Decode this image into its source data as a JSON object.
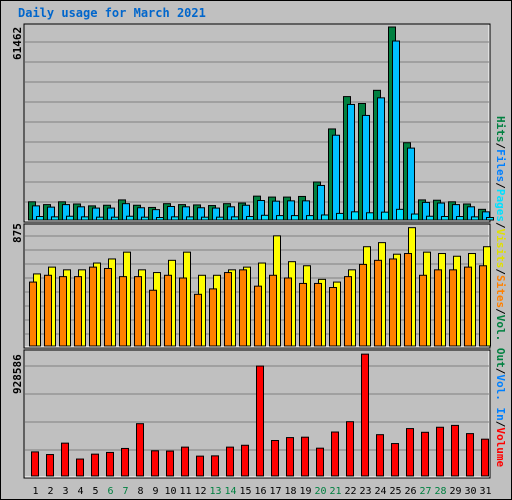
{
  "title": "Daily usage for March 2021",
  "colors": {
    "background": "#c0c0c0",
    "panel": "#c0c0c0",
    "gridline": "#808080",
    "title": "#0066cc",
    "hits": "#008040",
    "files": "#00c0ff",
    "pages": "#00e0ff",
    "visits": "#ffff00",
    "sites": "#ff8000",
    "kbin": "#ff0000",
    "kbout": "#cc0000",
    "weekday_label": "#000000",
    "weekend_label": "#008040"
  },
  "right_legend_top": [
    {
      "text": "Hits",
      "color": "#008040"
    },
    {
      "text": "/",
      "color": "#000000"
    },
    {
      "text": "Files",
      "color": "#0080ff"
    },
    {
      "text": "/",
      "color": "#000000"
    },
    {
      "text": "Pages",
      "color": "#00e0ff"
    },
    {
      "text": "/",
      "color": "#000000"
    },
    {
      "text": "Visits",
      "color": "#e0e000"
    },
    {
      "text": "/",
      "color": "#000000"
    },
    {
      "text": "Sites",
      "color": "#ff8000"
    },
    {
      "text": "/",
      "color": "#000000"
    },
    {
      "text": "Vol. Out",
      "color": "#008040"
    },
    {
      "text": "/",
      "color": "#000000"
    },
    {
      "text": "Vol. In",
      "color": "#0080ff"
    },
    {
      "text": "/",
      "color": "#000000"
    },
    {
      "text": "Volume",
      "color": "#ff0000"
    }
  ],
  "chart_data": [
    {
      "type": "bar",
      "panel": "hits-files-pages",
      "y_max_label": "61462",
      "ylim": [
        0,
        61462
      ],
      "x": [
        1,
        2,
        3,
        4,
        5,
        6,
        7,
        8,
        9,
        10,
        11,
        12,
        13,
        14,
        15,
        16,
        17,
        18,
        19,
        20,
        21,
        22,
        23,
        24,
        25,
        26,
        27,
        28,
        29,
        30,
        31
      ],
      "weekend_days": [
        6,
        7,
        13,
        14,
        20,
        21,
        27,
        28
      ],
      "series": [
        {
          "name": "Hits",
          "values": [
            5800,
            4900,
            5800,
            5100,
            4500,
            4700,
            6400,
            4700,
            4000,
            5200,
            4900,
            4800,
            4600,
            5200,
            5400,
            7600,
            7300,
            7300,
            7500,
            12100,
            29000,
            39300,
            37100,
            41300,
            61462,
            24600,
            6400,
            6300,
            5800,
            5100,
            3400
          ]
        },
        {
          "name": "Files",
          "values": [
            4500,
            4100,
            4900,
            4200,
            3800,
            3800,
            5200,
            3900,
            3300,
            4300,
            4200,
            3900,
            3800,
            4200,
            4700,
            6200,
            6000,
            6100,
            6100,
            11000,
            27000,
            36800,
            33300,
            38900,
            57000,
            22900,
            5600,
            5400,
            4900,
            4200,
            2600
          ]
        },
        {
          "name": "Pages",
          "values": [
            1100,
            1000,
            1200,
            1000,
            900,
            900,
            1200,
            900,
            800,
            1000,
            1000,
            900,
            900,
            1000,
            1100,
            1500,
            1400,
            1400,
            1400,
            1600,
            2100,
            2600,
            2300,
            2500,
            3400,
            1900,
            1200,
            1100,
            1100,
            1000,
            800
          ]
        }
      ]
    },
    {
      "type": "bar",
      "panel": "visits-sites",
      "y_max_label": "875",
      "ylim": [
        0,
        875
      ],
      "x": [
        1,
        2,
        3,
        4,
        5,
        6,
        7,
        8,
        9,
        10,
        11,
        12,
        13,
        14,
        15,
        16,
        17,
        18,
        19,
        20,
        21,
        22,
        23,
        24,
        25,
        26,
        27,
        28,
        29,
        30,
        31
      ],
      "series": [
        {
          "name": "Visits",
          "values": [
            530,
            580,
            560,
            560,
            610,
            640,
            690,
            560,
            540,
            630,
            690,
            520,
            520,
            560,
            580,
            610,
            810,
            620,
            590,
            490,
            470,
            560,
            730,
            760,
            675,
            870,
            690,
            680,
            660,
            680,
            730
          ]
        },
        {
          "name": "Sites",
          "values": [
            470,
            520,
            510,
            510,
            580,
            570,
            510,
            510,
            410,
            520,
            500,
            380,
            420,
            540,
            560,
            440,
            520,
            500,
            460,
            460,
            430,
            510,
            600,
            630,
            640,
            680,
            520,
            560,
            560,
            580,
            590
          ]
        }
      ]
    },
    {
      "type": "bar",
      "panel": "volume",
      "y_max_label": "928586",
      "ylim": [
        0,
        928586
      ],
      "x": [
        1,
        2,
        3,
        4,
        5,
        6,
        7,
        8,
        9,
        10,
        11,
        12,
        13,
        14,
        15,
        16,
        17,
        18,
        19,
        20,
        21,
        22,
        23,
        24,
        25,
        26,
        27,
        28,
        29,
        30,
        31
      ],
      "series": [
        {
          "name": "Volume",
          "values": [
            182000,
            162000,
            248000,
            128000,
            165000,
            178000,
            208000,
            395000,
            190000,
            188000,
            218000,
            150000,
            152000,
            218000,
            232000,
            830000,
            268000,
            290000,
            293000,
            210000,
            332000,
            410000,
            920000,
            312000,
            245000,
            358000,
            330000,
            368000,
            382000,
            320000,
            278000
          ]
        }
      ]
    }
  ]
}
